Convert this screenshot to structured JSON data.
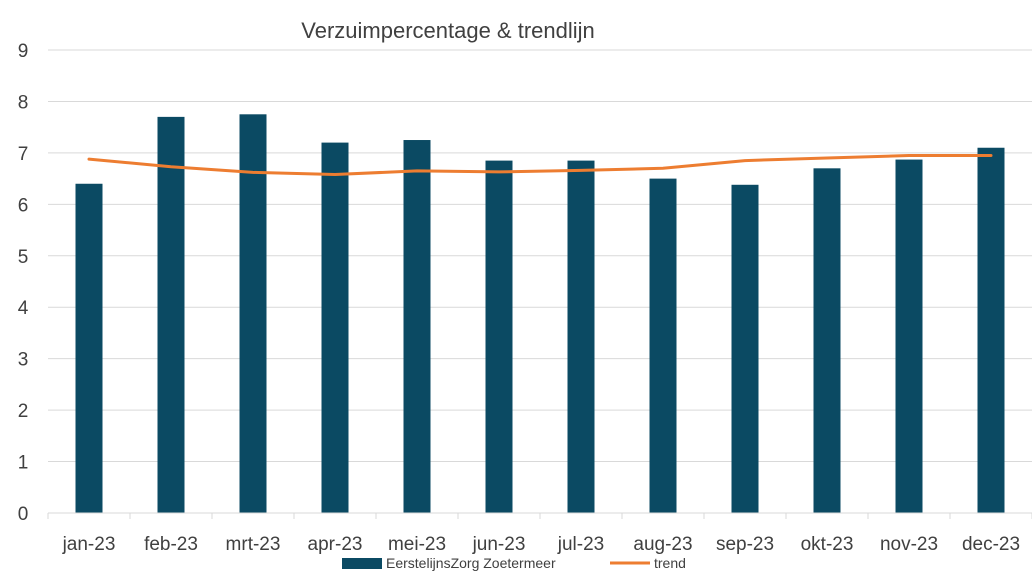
{
  "chart_data": {
    "type": "bar",
    "title": "Verzuimpercentage & trendlijn",
    "categories": [
      "jan-23",
      "feb-23",
      "mrt-23",
      "apr-23",
      "mei-23",
      "jun-23",
      "jul-23",
      "aug-23",
      "sep-23",
      "okt-23",
      "nov-23",
      "dec-23"
    ],
    "series": [
      {
        "name": "EerstelijnsZorg Zoetermeer",
        "type": "bar",
        "values": [
          6.4,
          7.7,
          7.75,
          7.2,
          7.25,
          6.85,
          6.85,
          6.5,
          6.38,
          6.7,
          6.87,
          7.1
        ]
      },
      {
        "name": "trend",
        "type": "line",
        "values": [
          6.88,
          6.73,
          6.62,
          6.58,
          6.65,
          6.63,
          6.66,
          6.7,
          6.85,
          6.9,
          6.95,
          6.95
        ]
      }
    ],
    "ylim": [
      0,
      9
    ],
    "yticks": [
      0,
      1,
      2,
      3,
      4,
      5,
      6,
      7,
      8,
      9
    ],
    "grid": true,
    "legend": "bottom",
    "colors": {
      "bar": "#0b4a63",
      "line": "#ed7d31",
      "grid": "#d9d9d9",
      "text": "#404040"
    }
  }
}
